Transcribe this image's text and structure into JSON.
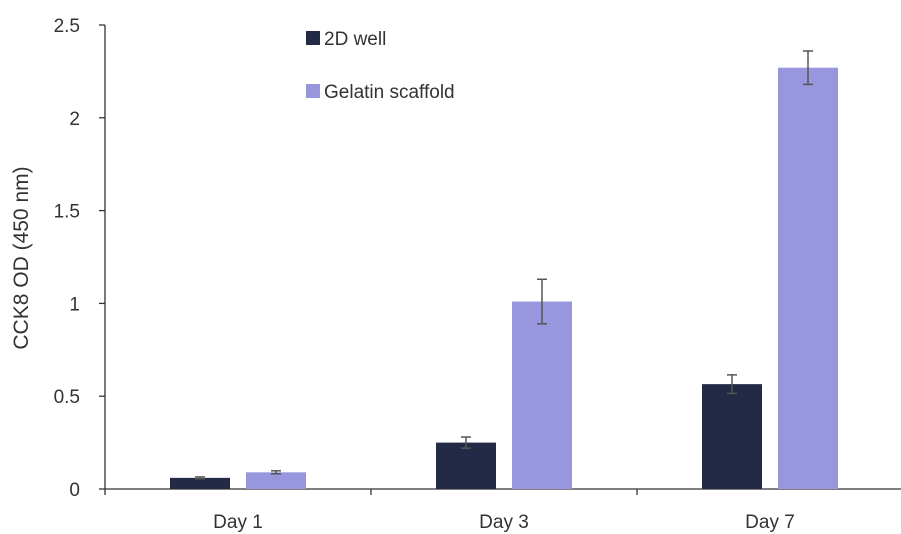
{
  "chart_data": {
    "type": "bar",
    "title": "",
    "xlabel": "",
    "ylabel": "CCK8 OD (450 nm)",
    "categories": [
      "Day 1",
      "Day 3",
      "Day 7"
    ],
    "ylim": [
      0,
      2.5
    ],
    "yticks": [
      0,
      0.5,
      1,
      1.5,
      2,
      2.5
    ],
    "ytick_labels": [
      "0",
      "0.5",
      "1",
      "1.5",
      "2",
      "2.5"
    ],
    "grid": false,
    "legend_position": "top-center",
    "series": [
      {
        "name": "2D well",
        "color": "#222a45",
        "values": [
          0.06,
          0.25,
          0.565
        ],
        "errors": [
          0.005,
          0.03,
          0.05
        ]
      },
      {
        "name": "Gelatin scaffold",
        "color": "#9896dd",
        "values": [
          0.09,
          1.01,
          2.27
        ],
        "errors": [
          0.008,
          0.12,
          0.09
        ]
      }
    ]
  }
}
